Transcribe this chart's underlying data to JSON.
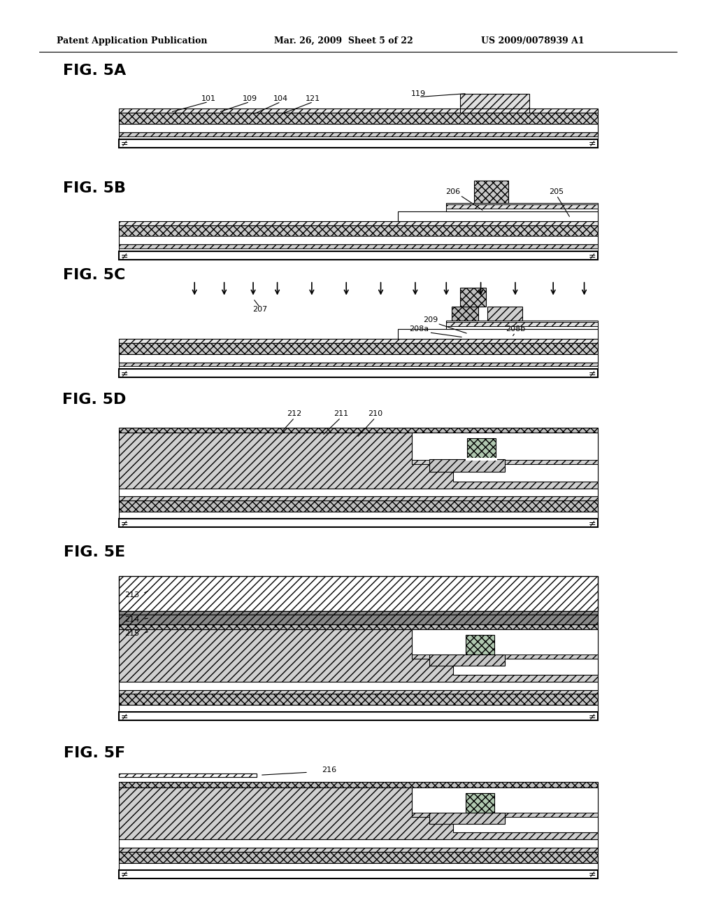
{
  "title_line1": "Patent Application Publication",
  "title_line2": "Mar. 26, 2009  Sheet 5 of 22",
  "title_line3": "US 2009/0078939 A1",
  "bg_color": "#ffffff"
}
